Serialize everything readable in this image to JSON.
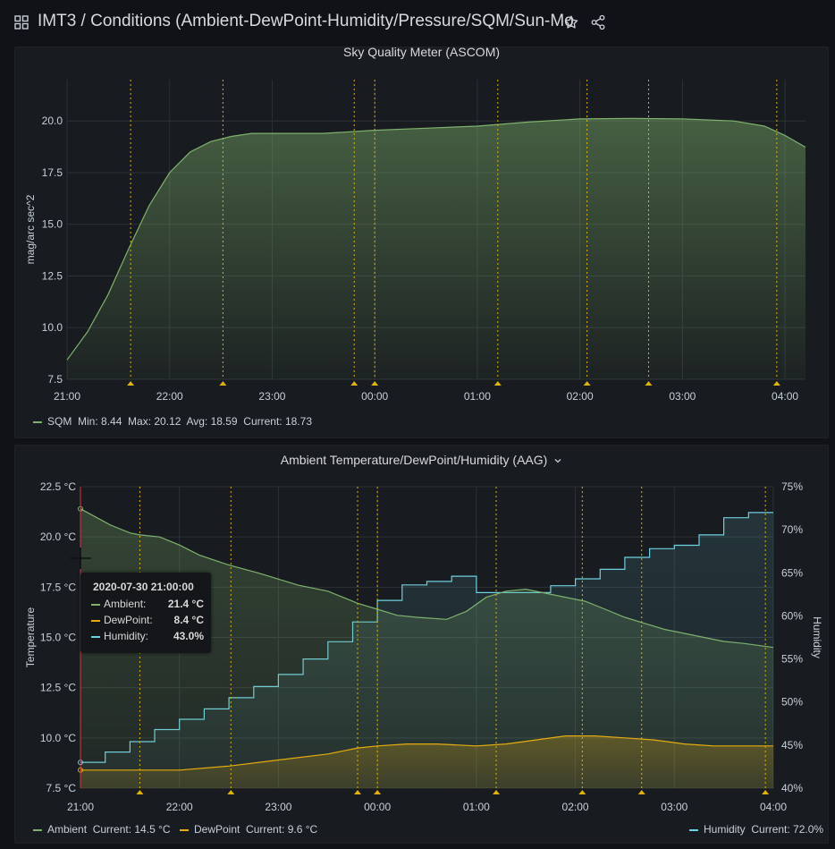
{
  "header": {
    "title": "IMT3 / Conditions (Ambient-DewPoint-Humidity/Pressure/SQM/Sun-Mo",
    "icons": [
      "grid-icon",
      "star-icon",
      "share-icon"
    ]
  },
  "colors": {
    "sqm": "#7eb26d",
    "ambient": "#7eb26d",
    "dewpoint": "#e5ac0e",
    "humidity": "#6ed0e0",
    "annotation": "#e0b400",
    "grid": "#2c3235",
    "time_marker": "#e02f44"
  },
  "sqm_panel": {
    "title": "Sky Quality Meter (ASCOM)",
    "legend": {
      "series": "SQM",
      "min": "Min: 8.44",
      "max": "Max: 20.12",
      "avg": "Avg: 18.59",
      "current": "Current: 18.73"
    }
  },
  "aag_panel": {
    "title": "Ambient Temperature/DewPoint/Humidity (AAG)",
    "legend": {
      "ambient_name": "Ambient",
      "ambient_current": "Current: 14.5 °C",
      "dewpoint_name": "DewPoint",
      "dewpoint_current": "Current: 9.6 °C",
      "humidity_name": "Humidity",
      "humidity_current": "Current: 72.0%"
    },
    "tooltip": {
      "time": "2020-07-30 21:00:00",
      "rows": [
        {
          "label": "Ambient:",
          "value": "21.4 °C"
        },
        {
          "label": "DewPoint:",
          "value": "8.4 °C"
        },
        {
          "label": "Humidity:",
          "value": "43.0%"
        }
      ]
    }
  },
  "chart_data": [
    {
      "type": "area",
      "title": "Sky Quality Meter (ASCOM)",
      "ylabel": "mag/arc sec^2",
      "xlabel": "",
      "x_ticks": [
        "21:00",
        "22:00",
        "23:00",
        "00:00",
        "01:00",
        "02:00",
        "03:00",
        "04:00"
      ],
      "y_ticks": [
        "7.5",
        "10.0",
        "12.5",
        "15.0",
        "17.5",
        "20.0"
      ],
      "xlim": [
        0,
        7.2
      ],
      "ylim": [
        7.5,
        22
      ],
      "grid": true,
      "legend_position": "bottom-left",
      "annotations_hours": [
        0.62,
        1.52,
        2.8,
        3.0,
        4.2,
        5.07,
        5.67,
        6.92
      ],
      "series": [
        {
          "name": "SQM",
          "x": [
            0,
            0.2,
            0.4,
            0.6,
            0.8,
            1.0,
            1.2,
            1.4,
            1.6,
            1.8,
            2.0,
            2.5,
            3.0,
            3.5,
            4.0,
            4.5,
            5.0,
            5.5,
            6.0,
            6.5,
            6.8,
            7.0,
            7.2
          ],
          "values": [
            8.44,
            9.8,
            11.6,
            13.8,
            15.9,
            17.5,
            18.5,
            19.0,
            19.25,
            19.4,
            19.4,
            19.4,
            19.55,
            19.65,
            19.75,
            19.95,
            20.1,
            20.12,
            20.1,
            20.0,
            19.75,
            19.3,
            18.73
          ]
        }
      ]
    },
    {
      "type": "line",
      "title": "Ambient Temperature/DewPoint/Humidity (AAG)",
      "ylabel": "Temperature",
      "y2label": "Humidity",
      "x_ticks": [
        "21:00",
        "22:00",
        "23:00",
        "00:00",
        "01:00",
        "02:00",
        "03:00",
        "04:00"
      ],
      "y_ticks": [
        "7.5 °C",
        "10.0 °C",
        "12.5 °C",
        "15.0 °C",
        "17.5 °C",
        "20.0 °C",
        "22.5 °C"
      ],
      "y2_ticks": [
        "40%",
        "45%",
        "50%",
        "55%",
        "60%",
        "65%",
        "70%",
        "75%"
      ],
      "xlim": [
        0,
        7.0
      ],
      "ylim": [
        7.5,
        22.5
      ],
      "y2lim": [
        40,
        75
      ],
      "grid": true,
      "legend_position": "bottom",
      "annotations_hours": [
        0.6,
        1.52,
        2.8,
        3.0,
        4.2,
        5.07,
        5.67,
        6.92
      ],
      "series": [
        {
          "name": "Ambient",
          "axis": "left",
          "x": [
            0,
            0.3,
            0.5,
            0.6,
            0.8,
            1.0,
            1.2,
            1.5,
            1.8,
            2.0,
            2.2,
            2.5,
            2.8,
            3.0,
            3.2,
            3.4,
            3.7,
            3.9,
            4.1,
            4.3,
            4.5,
            4.7,
            4.9,
            5.1,
            5.3,
            5.5,
            5.7,
            5.9,
            6.1,
            6.3,
            6.5,
            6.7,
            7.0
          ],
          "values": [
            21.4,
            20.6,
            20.2,
            20.1,
            20.0,
            19.6,
            19.1,
            18.6,
            18.2,
            17.9,
            17.6,
            17.3,
            16.7,
            16.4,
            16.1,
            16.0,
            15.9,
            16.3,
            17.0,
            17.3,
            17.4,
            17.2,
            17.0,
            16.8,
            16.4,
            16.0,
            15.7,
            15.4,
            15.2,
            15.0,
            14.8,
            14.7,
            14.5
          ]
        },
        {
          "name": "DewPoint",
          "axis": "left",
          "x": [
            0,
            0.5,
            1.0,
            1.5,
            2.0,
            2.5,
            2.8,
            3.0,
            3.3,
            3.6,
            4.0,
            4.3,
            4.6,
            4.9,
            5.2,
            5.5,
            5.8,
            6.1,
            6.4,
            6.7,
            7.0
          ],
          "values": [
            8.4,
            8.4,
            8.4,
            8.6,
            8.9,
            9.2,
            9.5,
            9.6,
            9.7,
            9.7,
            9.6,
            9.7,
            9.9,
            10.1,
            10.1,
            10.0,
            9.9,
            9.7,
            9.6,
            9.6,
            9.6
          ]
        },
        {
          "name": "Humidity",
          "axis": "right",
          "x": [
            0,
            0.25,
            0.5,
            0.75,
            1.0,
            1.25,
            1.5,
            1.75,
            2.0,
            2.25,
            2.5,
            2.75,
            3.0,
            3.25,
            3.5,
            3.75,
            4.0,
            4.25,
            4.5,
            4.75,
            5.0,
            5.25,
            5.5,
            5.75,
            6.0,
            6.25,
            6.5,
            6.75,
            7.0
          ],
          "values": [
            43.0,
            44.2,
            45.4,
            46.8,
            48.0,
            49.2,
            50.5,
            51.8,
            53.2,
            55.0,
            57.0,
            59.3,
            61.8,
            63.6,
            64.0,
            64.6,
            62.7,
            62.7,
            62.7,
            63.5,
            64.3,
            65.4,
            66.8,
            67.8,
            68.2,
            69.4,
            71.4,
            72.0,
            72.0
          ]
        }
      ]
    }
  ]
}
